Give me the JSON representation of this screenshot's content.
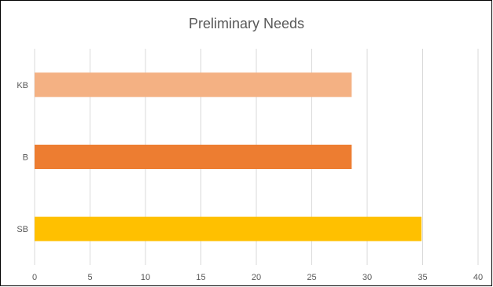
{
  "chart_data": {
    "type": "bar",
    "orientation": "horizontal",
    "title": "Preliminary Needs",
    "categories": [
      "KB",
      "B",
      "SB"
    ],
    "values": [
      28.6,
      28.6,
      34.9
    ],
    "colors": [
      "#F4B183",
      "#ED7D31",
      "#FFC000"
    ],
    "xlim": [
      0,
      40
    ],
    "xticks": [
      "0",
      "5",
      "10",
      "15",
      "20",
      "25",
      "30",
      "35",
      "40"
    ],
    "grid": "vertical",
    "legend": "none",
    "xlabel": "",
    "ylabel": ""
  }
}
